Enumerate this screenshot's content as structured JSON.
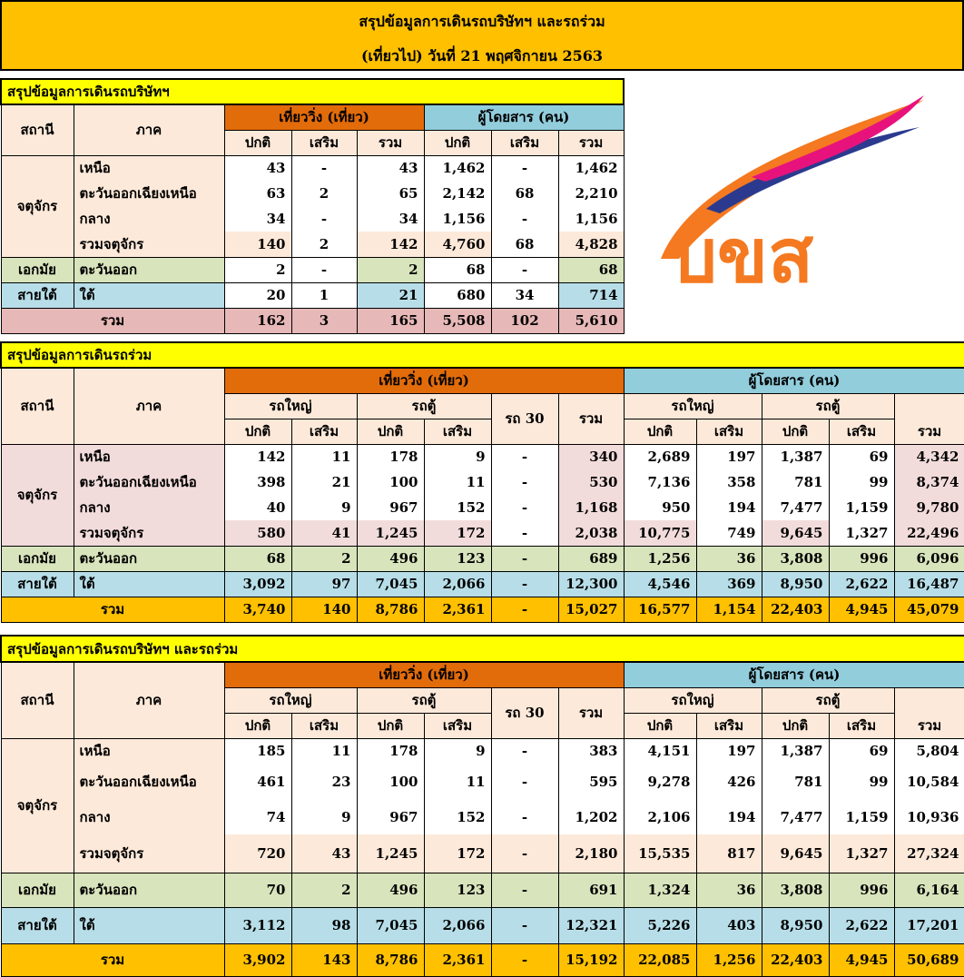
{
  "header": {
    "line1": "สรุปข้อมูลการเดินรถบริษัทฯ และรถร่วม",
    "line2": "(เที่ยวไป) วันที่ 21 พฤศจิกายน 2563"
  },
  "logo": {
    "icon": "bks-logo",
    "text": "บขส",
    "colors": [
      "#e8127c",
      "#2b3a8f",
      "#f47920"
    ]
  },
  "company": {
    "title": "สรุปข้อมูลการเดินรถบริษัทฯ",
    "h_station": "สถานี",
    "h_region": "ภาค",
    "h_trips": "เที่ยววิ่ง (เที่ยว)",
    "h_pax": "ผู้โดยสาร (คน)",
    "h_normal": "ปกติ",
    "h_extra": "เสริม",
    "h_total": "รวม",
    "rows": [
      {
        "station": "จตุจักร",
        "region": "เหนือ",
        "v": [
          "43",
          "-",
          "43",
          "1,462",
          "-",
          "1,462"
        ]
      },
      {
        "station": "",
        "region": "ตะวันออกเฉียงเหนือ",
        "v": [
          "63",
          "2",
          "65",
          "2,142",
          "68",
          "2,210"
        ]
      },
      {
        "station": "",
        "region": "กลาง",
        "v": [
          "34",
          "-",
          "34",
          "1,156",
          "-",
          "1,156"
        ]
      },
      {
        "station": "",
        "region": "รวมจตุจักร",
        "v": [
          "140",
          "2",
          "142",
          "4,760",
          "68",
          "4,828"
        ]
      },
      {
        "station": "เอกมัย",
        "region": "ตะวันออก",
        "v": [
          "2",
          "-",
          "2",
          "68",
          "-",
          "68"
        ]
      },
      {
        "station": "สายใต้",
        "region": "ใต้",
        "v": [
          "20",
          "1",
          "21",
          "680",
          "34",
          "714"
        ]
      }
    ],
    "total": {
      "label": "รวม",
      "v": [
        "162",
        "3",
        "165",
        "5,508",
        "102",
        "5,610"
      ]
    }
  },
  "joint": {
    "title": "สรุปข้อมูลการเดินรถร่วม",
    "h_station": "สถานี",
    "h_region": "ภาค",
    "h_trips": "เที่ยววิ่ง (เที่ยว)",
    "h_pax": "ผู้โดยสาร (คน)",
    "h_big": "รถใหญ่",
    "h_van": "รถตู้",
    "h_r30": "รถ 30",
    "h_normal": "ปกติ",
    "h_extra": "เสริม",
    "h_total": "รวม",
    "rows": [
      {
        "station": "จตุจักร",
        "region": "เหนือ",
        "v": [
          "142",
          "11",
          "178",
          "9",
          "-",
          "340",
          "2,689",
          "197",
          "1,387",
          "69",
          "4,342"
        ]
      },
      {
        "station": "",
        "region": "ตะวันออกเฉียงเหนือ",
        "v": [
          "398",
          "21",
          "100",
          "11",
          "-",
          "530",
          "7,136",
          "358",
          "781",
          "99",
          "8,374"
        ]
      },
      {
        "station": "",
        "region": "กลาง",
        "v": [
          "40",
          "9",
          "967",
          "152",
          "-",
          "1,168",
          "950",
          "194",
          "7,477",
          "1,159",
          "9,780"
        ]
      },
      {
        "station": "",
        "region": "รวมจตุจักร",
        "v": [
          "580",
          "41",
          "1,245",
          "172",
          "-",
          "2,038",
          "10,775",
          "749",
          "9,645",
          "1,327",
          "22,496"
        ]
      },
      {
        "station": "เอกมัย",
        "region": "ตะวันออก",
        "v": [
          "68",
          "2",
          "496",
          "123",
          "-",
          "689",
          "1,256",
          "36",
          "3,808",
          "996",
          "6,096"
        ]
      },
      {
        "station": "สายใต้",
        "region": "ใต้",
        "v": [
          "3,092",
          "97",
          "7,045",
          "2,066",
          "-",
          "12,300",
          "4,546",
          "369",
          "8,950",
          "2,622",
          "16,487"
        ]
      }
    ],
    "total": {
      "label": "รวม",
      "v": [
        "3,740",
        "140",
        "8,786",
        "2,361",
        "-",
        "15,027",
        "16,577",
        "1,154",
        "22,403",
        "4,945",
        "45,079"
      ]
    }
  },
  "combined": {
    "title": "สรุปข้อมูลการเดินรถบริษัทฯ และรถร่วม",
    "h_station": "สถานี",
    "h_region": "ภาค",
    "h_trips": "เที่ยววิ่ง (เที่ยว)",
    "h_pax": "ผู้โดยสาร (คน)",
    "h_big": "รถใหญ่",
    "h_van": "รถตู้",
    "h_r30": "รถ 30",
    "h_normal": "ปกติ",
    "h_extra": "เสริม",
    "h_total": "รวม",
    "rows": [
      {
        "station": "จตุจักร",
        "region": "เหนือ",
        "v": [
          "185",
          "11",
          "178",
          "9",
          "-",
          "383",
          "4,151",
          "197",
          "1,387",
          "69",
          "5,804"
        ]
      },
      {
        "station": "",
        "region": "ตะวันออกเฉียงเหนือ",
        "v": [
          "461",
          "23",
          "100",
          "11",
          "-",
          "595",
          "9,278",
          "426",
          "781",
          "99",
          "10,584"
        ]
      },
      {
        "station": "",
        "region": "กลาง",
        "v": [
          "74",
          "9",
          "967",
          "152",
          "-",
          "1,202",
          "2,106",
          "194",
          "7,477",
          "1,159",
          "10,936"
        ]
      },
      {
        "station": "",
        "region": "รวมจตุจักร",
        "v": [
          "720",
          "43",
          "1,245",
          "172",
          "-",
          "2,180",
          "15,535",
          "817",
          "9,645",
          "1,327",
          "27,324"
        ]
      },
      {
        "station": "เอกมัย",
        "region": "ตะวันออก",
        "v": [
          "70",
          "2",
          "496",
          "123",
          "-",
          "691",
          "1,324",
          "36",
          "3,808",
          "996",
          "6,164"
        ]
      },
      {
        "station": "สายใต้",
        "region": "ใต้",
        "v": [
          "3,112",
          "98",
          "7,045",
          "2,066",
          "-",
          "12,321",
          "5,226",
          "403",
          "8,950",
          "2,622",
          "17,201"
        ]
      }
    ],
    "total": {
      "label": "รวม",
      "v": [
        "3,902",
        "143",
        "8,786",
        "2,361",
        "-",
        "15,192",
        "22,085",
        "1,256",
        "22,403",
        "4,945",
        "50,689"
      ]
    }
  }
}
